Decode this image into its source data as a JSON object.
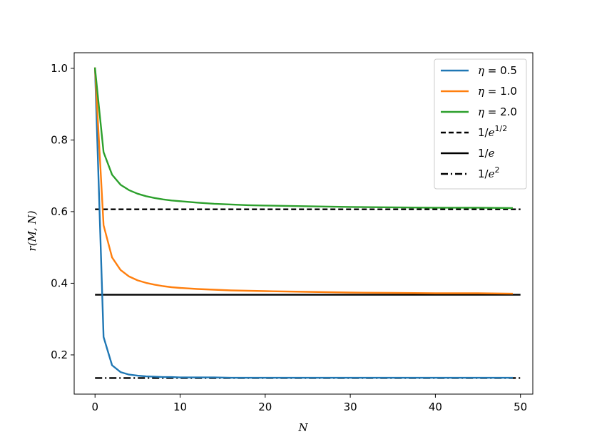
{
  "chart_data": {
    "type": "line",
    "title": "",
    "xlabel": "N",
    "ylabel": "r(M, N)",
    "xlim": [
      -2.45,
      51.45
    ],
    "ylim": [
      0.0905,
      1.0435
    ],
    "xticks": [
      0,
      10,
      20,
      30,
      40,
      50
    ],
    "yticks": [
      0.2,
      0.4,
      0.6,
      0.8,
      1.0
    ],
    "xtick_labels": [
      "0",
      "10",
      "20",
      "30",
      "40",
      "50"
    ],
    "ytick_labels": [
      "0.2",
      "0.4",
      "0.6",
      "0.8",
      "1.0"
    ],
    "grid": false,
    "legend": "top-right",
    "series": [
      {
        "name": "η = 0.5",
        "label_main": "η",
        "label_rest": " = 0.5",
        "color": "#1f77b4",
        "style": "solid",
        "x": [
          0,
          1,
          2,
          3,
          4,
          5,
          6,
          7,
          8,
          9,
          10,
          12,
          14,
          16,
          18,
          20,
          25,
          30,
          35,
          40,
          45,
          49
        ],
        "y": [
          1.0,
          0.25,
          0.171,
          0.152,
          0.145,
          0.142,
          0.14,
          0.139,
          0.138,
          0.138,
          0.137,
          0.137,
          0.137,
          0.136,
          0.136,
          0.136,
          0.136,
          0.136,
          0.136,
          0.136,
          0.136,
          0.136
        ]
      },
      {
        "name": "η = 1.0",
        "label_main": "η",
        "label_rest": " = 1.0",
        "color": "#ff7f0e",
        "style": "solid",
        "x": [
          0,
          1,
          2,
          3,
          4,
          5,
          6,
          7,
          8,
          9,
          10,
          12,
          14,
          16,
          18,
          20,
          25,
          30,
          35,
          40,
          45,
          49
        ],
        "y": [
          1.0,
          0.562,
          0.472,
          0.437,
          0.419,
          0.408,
          0.401,
          0.396,
          0.392,
          0.389,
          0.387,
          0.384,
          0.382,
          0.38,
          0.379,
          0.378,
          0.376,
          0.374,
          0.373,
          0.372,
          0.372,
          0.371
        ]
      },
      {
        "name": "η = 2.0",
        "label_main": "η",
        "label_rest": " = 2.0",
        "color": "#2ca02c",
        "style": "solid",
        "x": [
          0,
          1,
          2,
          3,
          4,
          5,
          6,
          7,
          8,
          9,
          10,
          12,
          14,
          16,
          18,
          20,
          25,
          30,
          35,
          40,
          45,
          49
        ],
        "y": [
          1.0,
          0.766,
          0.703,
          0.675,
          0.66,
          0.65,
          0.643,
          0.638,
          0.634,
          0.631,
          0.629,
          0.625,
          0.622,
          0.62,
          0.618,
          0.617,
          0.615,
          0.613,
          0.612,
          0.611,
          0.611,
          0.61
        ]
      }
    ],
    "reference_lines": [
      {
        "name": "1/e^{1/2}",
        "label_main": "1/",
        "label_italic": "e",
        "label_sup": "1/2",
        "value": 0.6065,
        "x_range": [
          0,
          50
        ],
        "color": "#000000",
        "style": "dashed"
      },
      {
        "name": "1/e",
        "label_main": "1/",
        "label_italic": "e",
        "label_sup": "",
        "value": 0.3679,
        "x_range": [
          0,
          50
        ],
        "color": "#000000",
        "style": "solid"
      },
      {
        "name": "1/e^2",
        "label_main": "1/",
        "label_italic": "e",
        "label_sup": "2",
        "value": 0.1353,
        "x_range": [
          0,
          50
        ],
        "color": "#000000",
        "style": "dashdot"
      }
    ]
  }
}
